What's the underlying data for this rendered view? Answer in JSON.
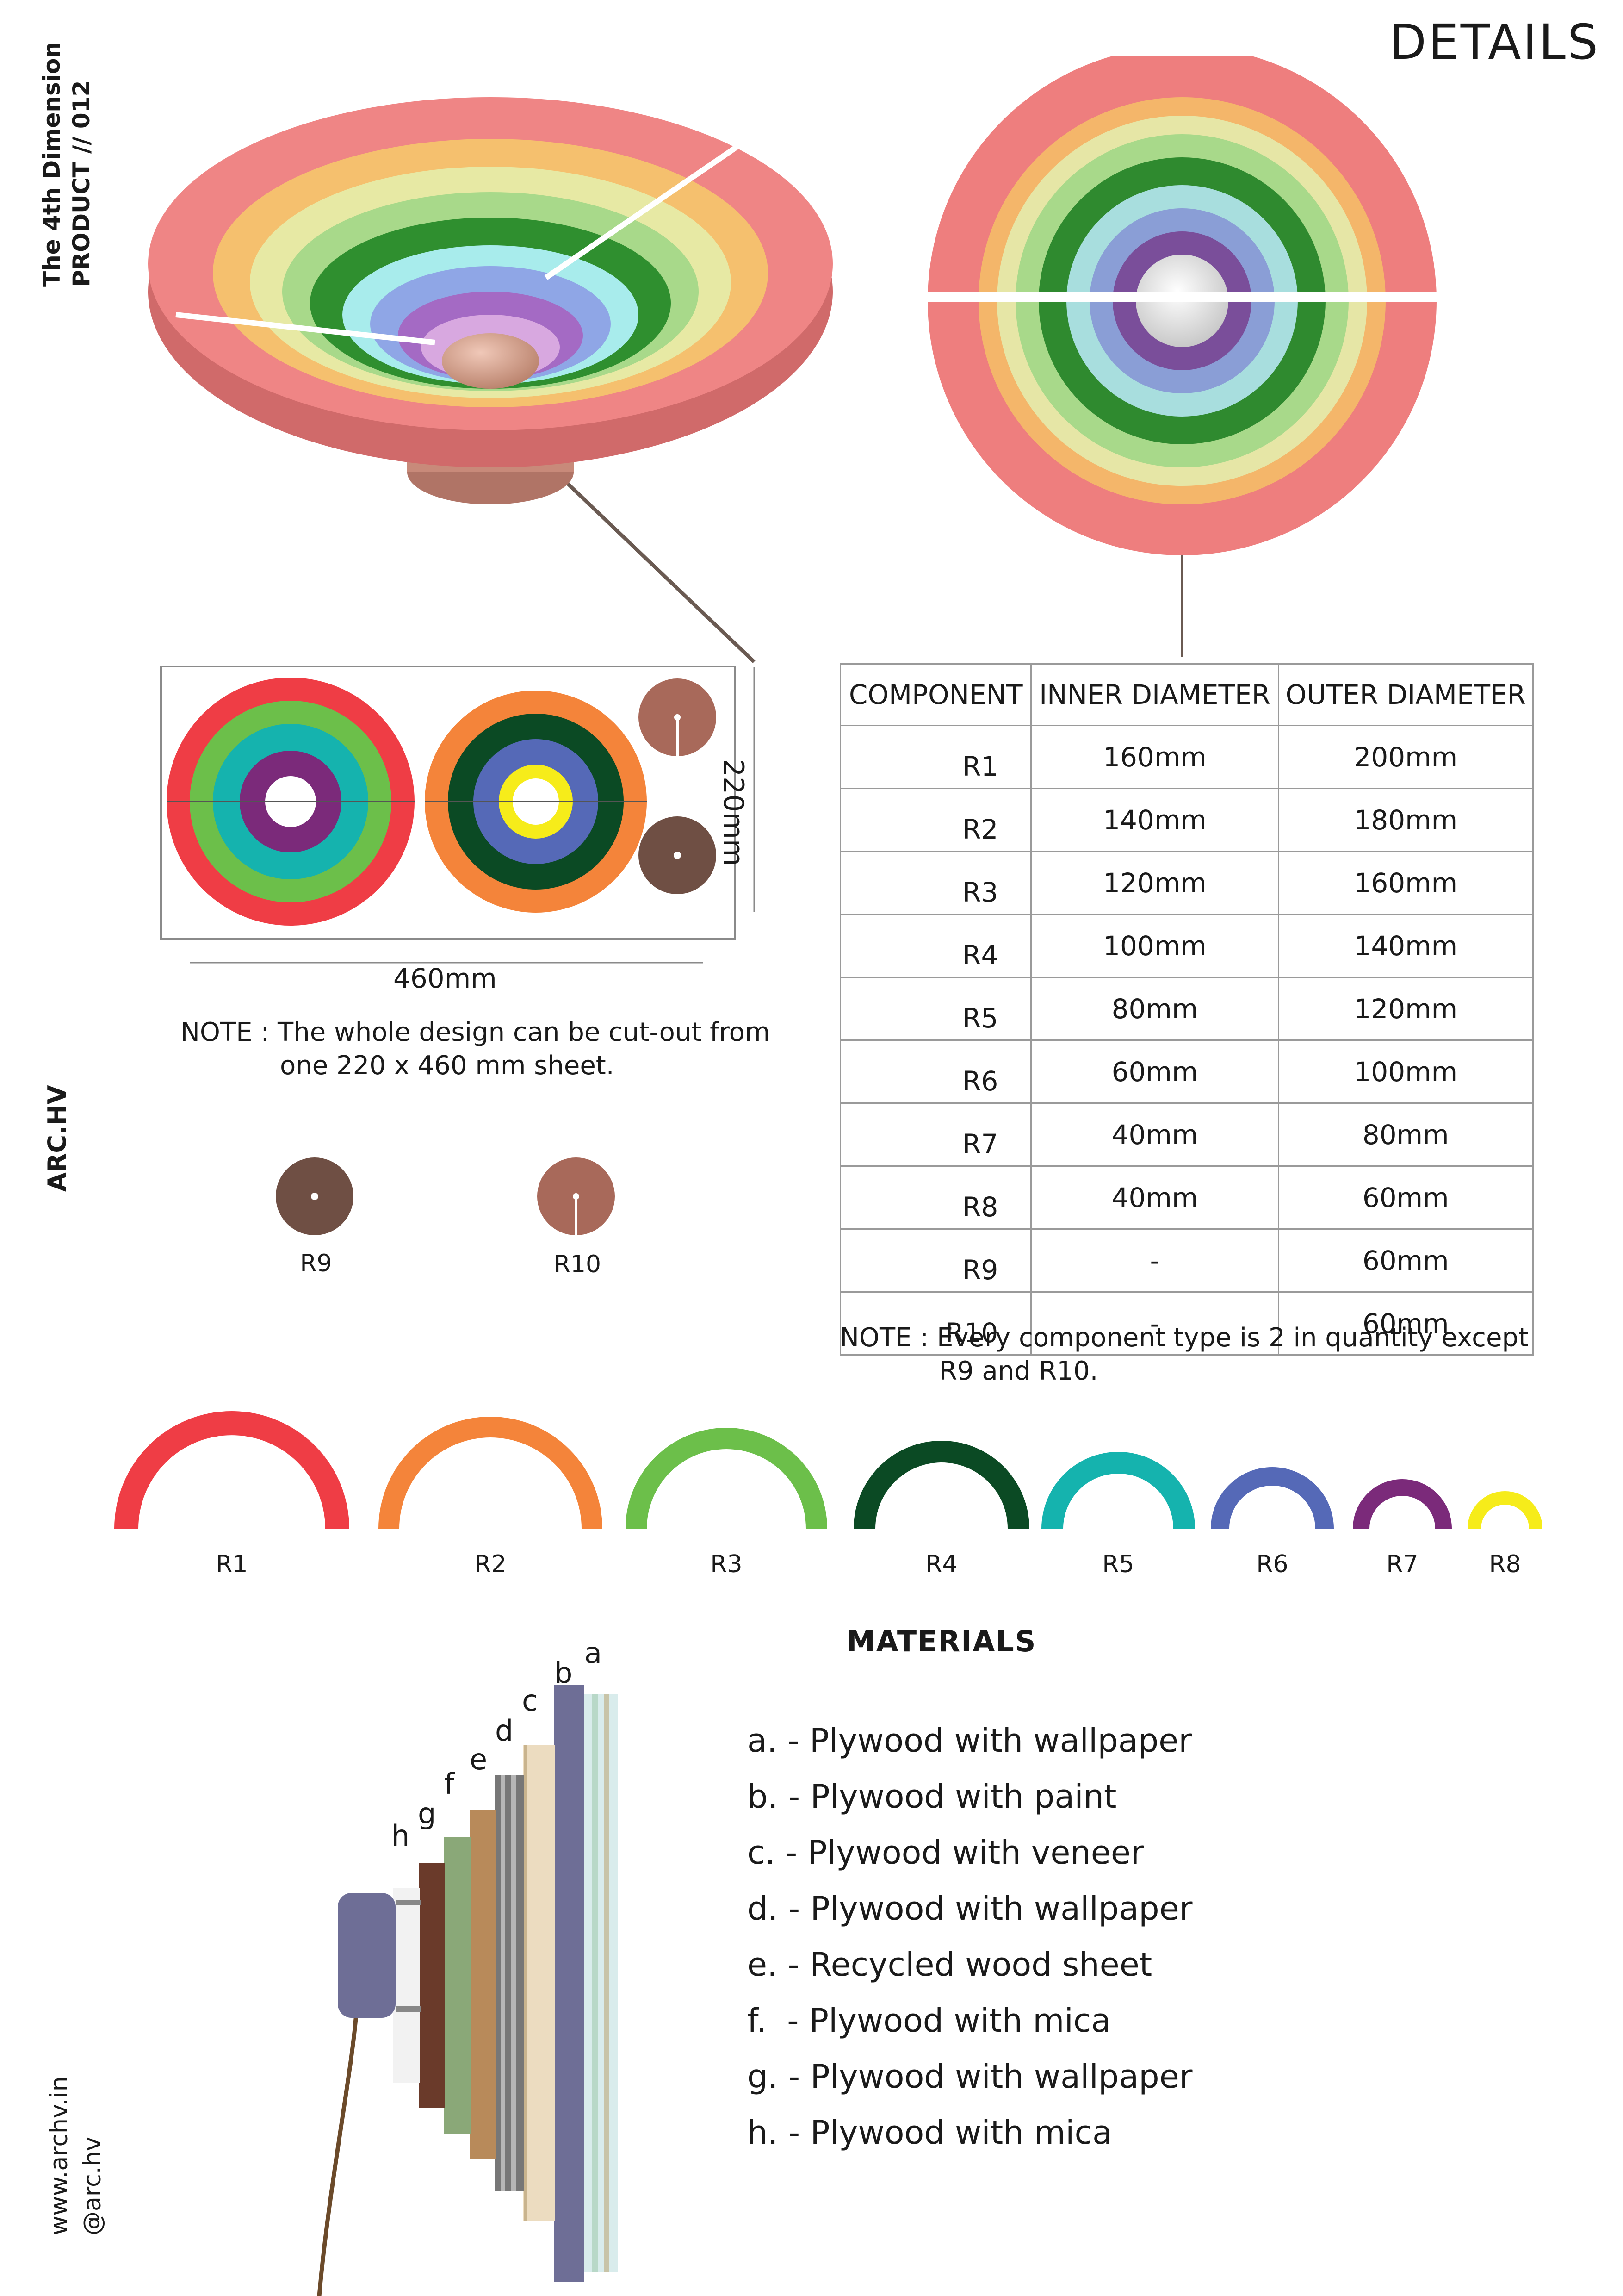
{
  "header": {
    "title": "DETAILS",
    "project_line1": "The 4th Dimension",
    "project_line2": "PRODUCT // 012",
    "brand": "ARC.HV",
    "website": "www.archv.in",
    "handle": "@arc.hv"
  },
  "colors": {
    "r1": "#ef3d45",
    "r2": "#f4843a",
    "r3": "#6cbf4a",
    "r4": "#0b4a24",
    "r5": "#15b3ae",
    "r6": "#5569b7",
    "r7": "#7b2a7a",
    "r8": "#f6ec1a",
    "r9": "#6f4f44",
    "r10": "#a8695a",
    "render_outer": "#ee7e7e"
  },
  "cutting_sheet": {
    "width_label": "460mm",
    "height_label": "220mm",
    "note_line1": "NOTE : The whole design can be cut-out from",
    "note_line2": "one 220 x 460 mm sheet."
  },
  "small_parts": [
    {
      "label": "R9"
    },
    {
      "label": "R10"
    }
  ],
  "table": {
    "headers": [
      "COMPONENT",
      "INNER DIAMETER",
      "OUTER DIAMETER"
    ],
    "rows": [
      {
        "component": "R1",
        "inner": "160mm",
        "outer": "200mm"
      },
      {
        "component": "R2",
        "inner": "140mm",
        "outer": "180mm"
      },
      {
        "component": "R3",
        "inner": "120mm",
        "outer": "160mm"
      },
      {
        "component": "R4",
        "inner": "100mm",
        "outer": "140mm"
      },
      {
        "component": "R5",
        "inner": "80mm",
        "outer": "120mm"
      },
      {
        "component": "R6",
        "inner": "60mm",
        "outer": "100mm"
      },
      {
        "component": "R7",
        "inner": "40mm",
        "outer": "80mm"
      },
      {
        "component": "R8",
        "inner": "40mm",
        "outer": "60mm"
      },
      {
        "component": "R9",
        "inner": "-",
        "outer": "60mm"
      },
      {
        "component": "R10",
        "inner": "-",
        "outer": "60mm"
      }
    ],
    "note_line1": "NOTE : Every component type is 2 in quantity except",
    "note_line2": "R9 and R10."
  },
  "ring_labels": [
    "R1",
    "R2",
    "R3",
    "R4",
    "R5",
    "R6",
    "R7",
    "R8"
  ],
  "materials": {
    "title": "MATERIALS",
    "items": [
      "a. - Plywood with wallpaper",
      "b. - Plywood with paint",
      "c. - Plywood with veneer",
      "d. - Plywood with wallpaper",
      "e. - Recycled wood sheet",
      "f.  - Plywood with mica",
      "g. - Plywood with wallpaper",
      "h. - Plywood with mica"
    ],
    "layer_letters": [
      "a",
      "b",
      "c",
      "d",
      "e",
      "f",
      "g",
      "h"
    ]
  }
}
